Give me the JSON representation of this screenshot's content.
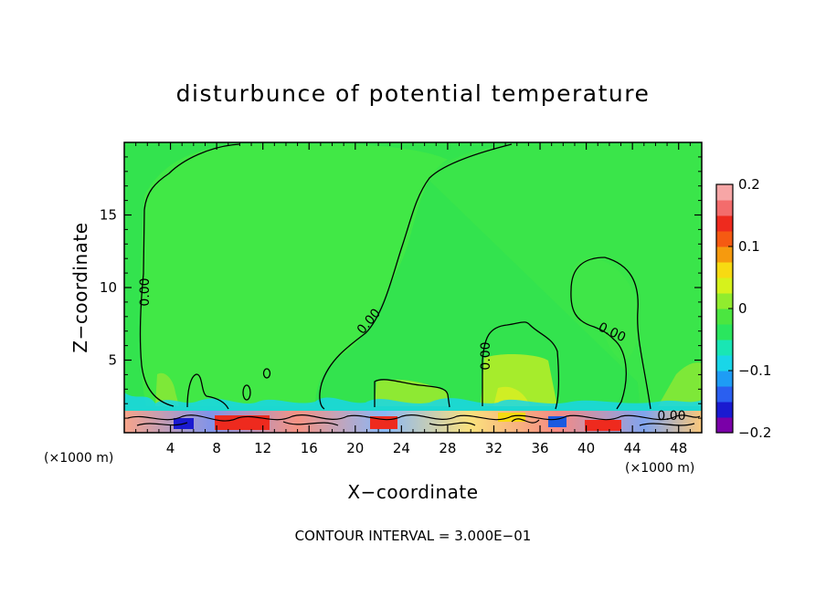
{
  "chart_data": {
    "type": "heatmap",
    "title": "disturbunce of potential temperature",
    "xlabel": "X−coordinate",
    "ylabel": "Z−coordinate",
    "x_unit": "(×1000 m)",
    "z_unit": "(×1000 m)",
    "xlim": [
      0,
      50
    ],
    "ylim": [
      0,
      20
    ],
    "xticks": [
      4,
      8,
      12,
      16,
      20,
      24,
      28,
      32,
      36,
      40,
      44,
      48
    ],
    "xtick_labels": [
      "4",
      "8",
      "12",
      "16",
      "20",
      "24",
      "28",
      "32",
      "36",
      "40",
      "44",
      "48"
    ],
    "yticks": [
      5,
      10,
      15
    ],
    "ytick_labels": [
      "5",
      "10",
      "15"
    ],
    "colorbar": {
      "min": -0.2,
      "max": 0.2,
      "tick_values": [
        0.2,
        0.1,
        0,
        -0.1,
        -0.2
      ],
      "tick_labels": [
        "0.2",
        "0.1",
        "0",
        "−0.1",
        "−0.2"
      ],
      "colors": [
        "#7a00a8",
        "#1a1ad0",
        "#2a5ff0",
        "#1e9cf5",
        "#19d6e8",
        "#19e6b4",
        "#2ae65e",
        "#4be640",
        "#91ec2e",
        "#d6f21c",
        "#f7da12",
        "#f69a0e",
        "#f55a12",
        "#ee2a1e",
        "#f36c6c",
        "#f7a6a6"
      ]
    },
    "field_background": "#33e34e",
    "zero_contour_label": "0.00",
    "contour_interval_text": "CONTOUR INTERVAL = 3.000E−01"
  }
}
